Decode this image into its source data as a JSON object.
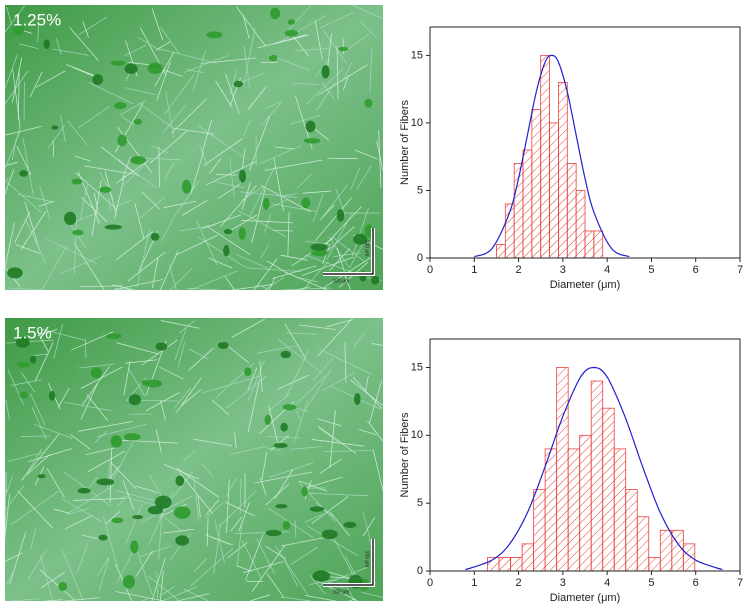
{
  "panels": [
    {
      "label": "1.25%",
      "scale_bar_x": "100 μm",
      "scale_bar_y": "100 μm"
    },
    {
      "label": "1.5%",
      "scale_bar_x": "100 μm",
      "scale_bar_y": "100 μm"
    }
  ],
  "chart_data": [
    {
      "type": "histogram",
      "xlabel": "Diameter (μm)",
      "ylabel": "Number of Fibers",
      "bins": [
        1.5,
        1.7,
        1.9,
        2.1,
        2.3,
        2.5,
        2.7,
        2.9,
        3.1,
        3.3,
        3.5,
        3.7,
        3.9
      ],
      "counts": [
        1,
        4,
        7,
        8,
        11,
        15,
        10,
        13,
        7,
        5,
        2,
        2
      ],
      "color": "#e8413c",
      "fit": {
        "color": "#2020d0",
        "x": [
          1.0,
          1.4,
          1.8,
          2.0,
          2.2,
          2.4,
          2.6,
          2.75,
          2.9,
          3.1,
          3.3,
          3.5,
          3.7,
          4.1,
          4.5
        ],
        "y": [
          0.1,
          0.7,
          3.4,
          5.9,
          9.1,
          12.3,
          14.5,
          15,
          14.5,
          12.3,
          9.1,
          5.9,
          3.4,
          0.7,
          0.1
        ]
      },
      "xlim": [
        0,
        7
      ],
      "xticks": [
        0,
        1,
        2,
        3,
        4,
        5,
        6,
        7
      ],
      "ylim": [
        0,
        17.1
      ],
      "yticks": [
        0,
        5,
        10,
        15
      ]
    },
    {
      "type": "histogram",
      "xlabel": "Diameter (μm)",
      "ylabel": "Number of Fibers",
      "bins": [
        1.3,
        1.56,
        1.82,
        2.08,
        2.34,
        2.6,
        2.86,
        3.12,
        3.38,
        3.64,
        3.9,
        4.16,
        4.42,
        4.68,
        4.94,
        5.2,
        5.46,
        5.72,
        5.98
      ],
      "counts": [
        1,
        1,
        1,
        2,
        6,
        9,
        15,
        9,
        10,
        14,
        12,
        9,
        6,
        4,
        1,
        3,
        3,
        2
      ],
      "color": "#e8413c",
      "fit": {
        "color": "#2020d0",
        "x": [
          0.8,
          1.4,
          1.8,
          2.2,
          2.6,
          3.0,
          3.4,
          3.7,
          4.0,
          4.4,
          4.8,
          5.2,
          5.6,
          6.0,
          6.6
        ],
        "y": [
          0.1,
          0.8,
          2.0,
          4.3,
          7.7,
          11.4,
          14.3,
          15,
          14.3,
          11.4,
          7.7,
          4.3,
          2.0,
          0.8,
          0.1
        ]
      },
      "xlim": [
        0,
        7
      ],
      "xticks": [
        0,
        1,
        2,
        3,
        4,
        5,
        6,
        7
      ],
      "ylim": [
        0,
        17.1
      ],
      "yticks": [
        0,
        5,
        10,
        15
      ]
    }
  ]
}
